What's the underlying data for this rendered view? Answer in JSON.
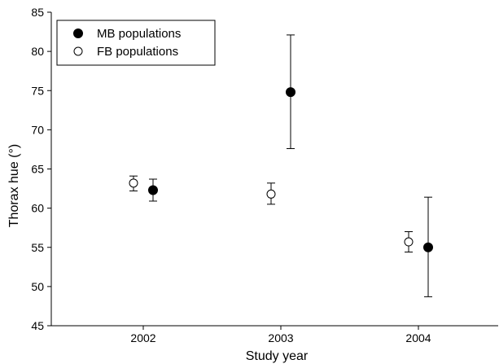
{
  "chart_data": {
    "type": "scatter",
    "title": "",
    "xlabel": "Study year",
    "ylabel": "Thorax hue (°)",
    "categories": [
      "2002",
      "2003",
      "2004"
    ],
    "ylim": [
      45,
      85
    ],
    "yticks": [
      45,
      50,
      55,
      60,
      65,
      70,
      75,
      80,
      85
    ],
    "grid": false,
    "legend_position": "top-left",
    "series": [
      {
        "name": "MB populations",
        "marker": "filled-circle",
        "color": "#000000",
        "points": [
          {
            "category": "2002",
            "value": 62.3,
            "lower": 60.9,
            "upper": 63.7
          },
          {
            "category": "2003",
            "value": 74.8,
            "lower": 67.6,
            "upper": 82.1
          },
          {
            "category": "2004",
            "value": 55.0,
            "lower": 48.7,
            "upper": 61.4
          }
        ]
      },
      {
        "name": "FB populations",
        "marker": "open-circle",
        "color": "#000000",
        "points": [
          {
            "category": "2002",
            "value": 63.2,
            "lower": 62.2,
            "upper": 64.1
          },
          {
            "category": "2003",
            "value": 61.8,
            "lower": 60.5,
            "upper": 63.2
          },
          {
            "category": "2004",
            "value": 55.7,
            "lower": 54.4,
            "upper": 57.0
          }
        ]
      }
    ]
  }
}
